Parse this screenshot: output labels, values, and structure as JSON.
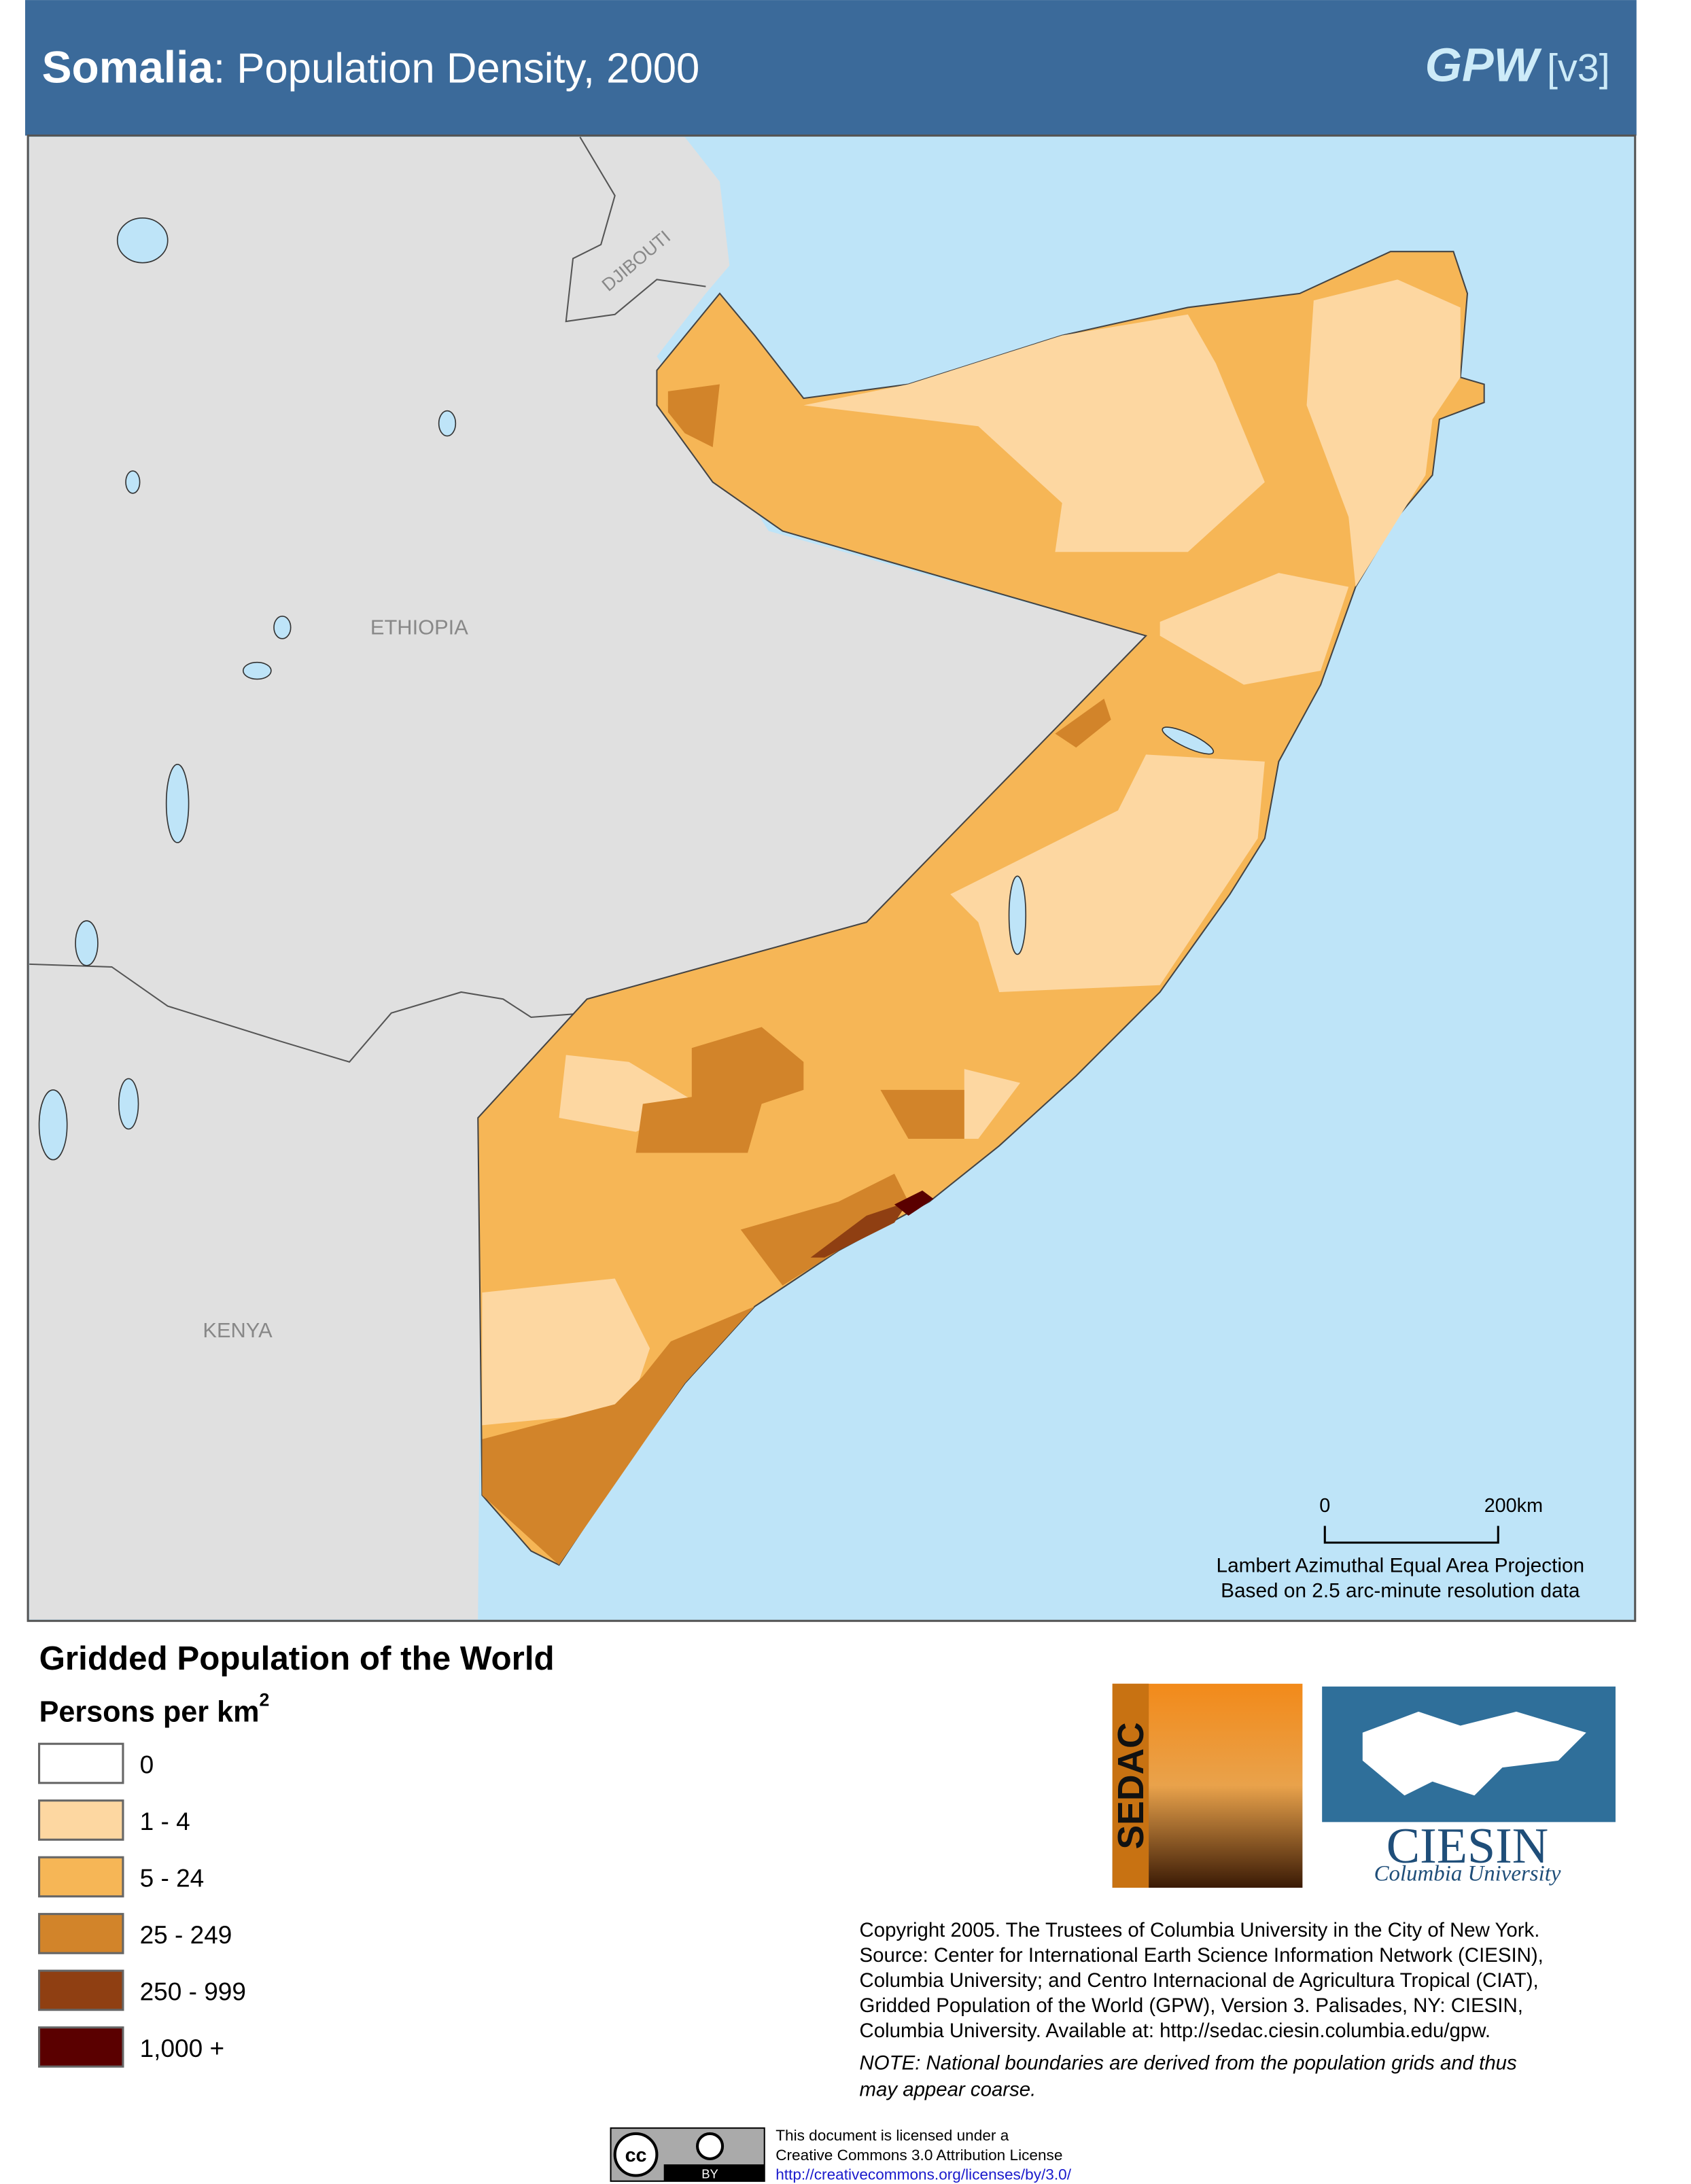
{
  "header": {
    "country": "Somalia",
    "title": ": Population Density, 2000",
    "brand": "GPW",
    "version": "[v3]"
  },
  "map": {
    "labels": {
      "ethiopia": "ETHIOPIA",
      "djibouti": "DJIBOUTI",
      "kenya": "KENYA"
    },
    "scale_bar": {
      "start": "0",
      "end": "200km"
    },
    "projection": [
      "Lambert Azimuthal Equal Area Projection",
      "Based on 2.5 arc-minute resolution data"
    ]
  },
  "legend": {
    "title": "Gridded Population of the World",
    "unit": "Persons per km",
    "unit_sup": "2",
    "items": [
      {
        "label": "0",
        "color": "#ffffff"
      },
      {
        "label": "1 - 4",
        "color": "#fdd7a1"
      },
      {
        "label": "5 - 24",
        "color": "#f6b656"
      },
      {
        "label": "25 - 249",
        "color": "#d2842a"
      },
      {
        "label": "250 - 999",
        "color": "#8f3f12"
      },
      {
        "label": "1,000 +",
        "color": "#5a0000"
      }
    ]
  },
  "logos": {
    "sedac": "SEDAC",
    "ciesin": "CIESIN",
    "university": "Columbia University"
  },
  "credits": {
    "lines": [
      "Copyright 2005. The Trustees of Columbia University in the City of New York.",
      "Source: Center for International Earth Science Information Network (CIESIN),",
      "Columbia University; and Centro Internacional de Agricultura Tropical (CIAT),",
      "Gridded Population of the World (GPW),  Version 3.  Palisades, NY: CIESIN,",
      "Columbia University.   Available at:    http://sedac.ciesin.columbia.edu/gpw."
    ],
    "note": [
      "NOTE: National boundaries are derived from the population grids and thus",
      "may appear coarse."
    ]
  },
  "license": {
    "badge_cc": "cc",
    "badge_by": "BY",
    "lines": [
      "This document is licensed under a",
      "Creative Commons 3.0 Attribution License",
      "http://creativecommons.org/licenses/by/3.0/"
    ]
  }
}
